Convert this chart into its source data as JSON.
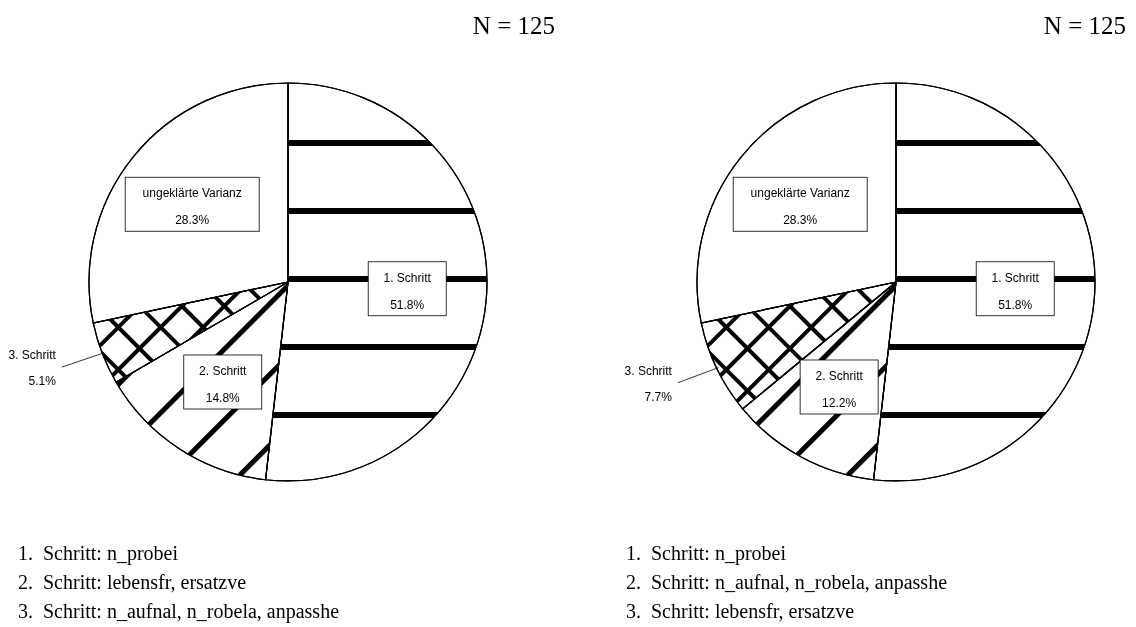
{
  "chart_data": [
    {
      "type": "pie",
      "title": "N = 125",
      "categories": [
        "1. Schritt",
        "2. Schritt",
        "3. Schritt",
        "ungeklärte Varianz"
      ],
      "values": [
        51.8,
        14.8,
        5.1,
        28.3
      ],
      "value_labels": [
        "51.8%",
        "14.8%",
        "5.1%",
        "28.3%"
      ],
      "colors": [
        "#ffffff",
        "#ffffff",
        "#ffffff",
        "#ffffff"
      ],
      "annotations": [
        "1.  Schritt: n_probei",
        "2.  Schritt: lebensfr, ersatzve",
        "3.  Schritt: n_aufnal, n_robela, anpasshe"
      ]
    },
    {
      "type": "pie",
      "title": "N = 125",
      "categories": [
        "1. Schritt",
        "2. Schritt",
        "3. Schritt",
        "ungeklärte Varianz"
      ],
      "values": [
        51.8,
        12.2,
        7.7,
        28.3
      ],
      "value_labels": [
        "51.8%",
        "12.2%",
        "7.7%",
        "28.3%"
      ],
      "colors": [
        "#ffffff",
        "#ffffff",
        "#ffffff",
        "#ffffff"
      ],
      "annotations": [
        "1.  Schritt: n_probei",
        "2.  Schritt: n_aufnal, n_robela, anpasshe",
        "3.  Schritt: lebensfr, ersatzve"
      ]
    }
  ]
}
